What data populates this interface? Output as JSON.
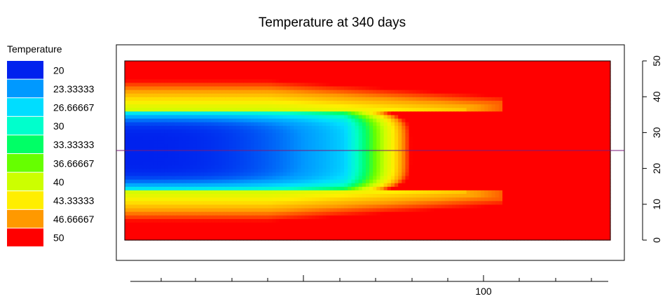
{
  "chart_data": {
    "type": "heatmap",
    "title": "Temperature at 340 days",
    "legend": {
      "title": "Temperature",
      "placement": "left",
      "levels": [
        {
          "label": "20",
          "color": "#0022ee"
        },
        {
          "label": "23.33333",
          "color": "#0099ff"
        },
        {
          "label": "26.66667",
          "color": "#00ddff"
        },
        {
          "label": "30",
          "color": "#00ffcc"
        },
        {
          "label": "33.33333",
          "color": "#00ff66"
        },
        {
          "label": "36.66667",
          "color": "#66ff00"
        },
        {
          "label": "40",
          "color": "#ccff00"
        },
        {
          "label": "43.33333",
          "color": "#ffee00"
        },
        {
          "label": "46.66667",
          "color": "#ff9900"
        },
        {
          "label": "50",
          "color": "#ff0000"
        }
      ]
    },
    "color_range": [
      20,
      50
    ],
    "x_axis": {
      "ticks": [
        100
      ],
      "tick_labels": [
        "100"
      ],
      "range": [
        0,
        135
      ]
    },
    "y_axis": {
      "position": "right",
      "ticks": [
        0,
        10,
        20,
        30,
        40,
        50
      ],
      "tick_labels": [
        "0",
        "10",
        "20",
        "30",
        "40",
        "50"
      ],
      "range": [
        0,
        50
      ]
    },
    "reference_line": {
      "y": 25,
      "color": "#7a1a7a"
    },
    "grid": false,
    "field": {
      "description_of_values": "temperature in degrees; cold core along centre, hot boundaries",
      "x_cells": 135,
      "y_cells": 50
    }
  }
}
